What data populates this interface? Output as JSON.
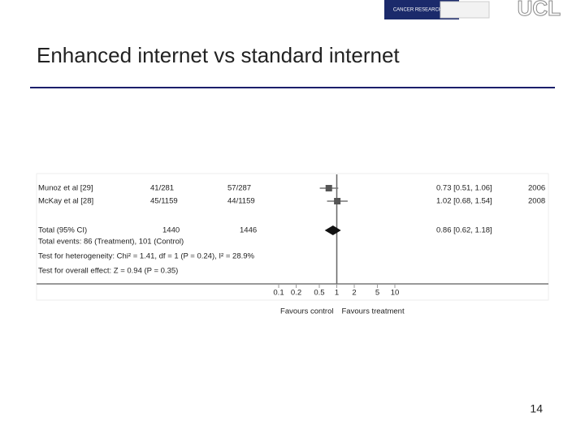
{
  "header": {
    "logos": [
      "CANCER RESEARCH UK",
      "UCL"
    ]
  },
  "chart_data": {
    "type": "forest",
    "title": "Enhanced internet vs standard internet",
    "studies": [
      {
        "name": "Munoz et al [29]",
        "treatment": "41/281",
        "control": "57/287",
        "estimate": 0.73,
        "ci_low": 0.51,
        "ci_high": 1.06,
        "label": "0.73 [0.51, 1.06]",
        "year": "2006"
      },
      {
        "name": "McKay et al [28]",
        "treatment": "45/1159",
        "control": "44/1159",
        "estimate": 1.02,
        "ci_low": 0.68,
        "ci_high": 1.54,
        "label": "1.02 [0.68, 1.54]",
        "year": "2008"
      }
    ],
    "total": {
      "name": "Total (95% CI)",
      "treatment": "1440",
      "control": "1446",
      "estimate": 0.86,
      "ci_low": 0.62,
      "ci_high": 1.18,
      "label": "0.86 [0.62, 1.18]"
    },
    "notes": [
      "Total events: 86 (Treatment), 101 (Control)",
      "Test for heterogeneity: Chi² = 1.41, df = 1 (P = 0.24), I² = 28.9%",
      "Test for overall effect: Z = 0.94 (P = 0.35)"
    ],
    "xlim": [
      0.1,
      10
    ],
    "xticks": [
      0.1,
      0.2,
      0.5,
      1,
      2,
      5,
      10
    ],
    "log_scale": true,
    "reference": 1,
    "x_labels": [
      "Favours control",
      "Favours treatment"
    ]
  },
  "page_number": "14"
}
